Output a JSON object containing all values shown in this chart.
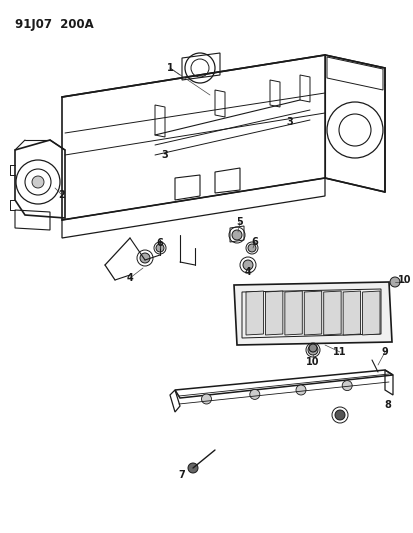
{
  "title": "91J07  200A",
  "background_color": "#ffffff",
  "line_color": "#1a1a1a",
  "text_color": "#1a1a1a",
  "fig_width": 4.14,
  "fig_height": 5.33,
  "dpi": 100
}
